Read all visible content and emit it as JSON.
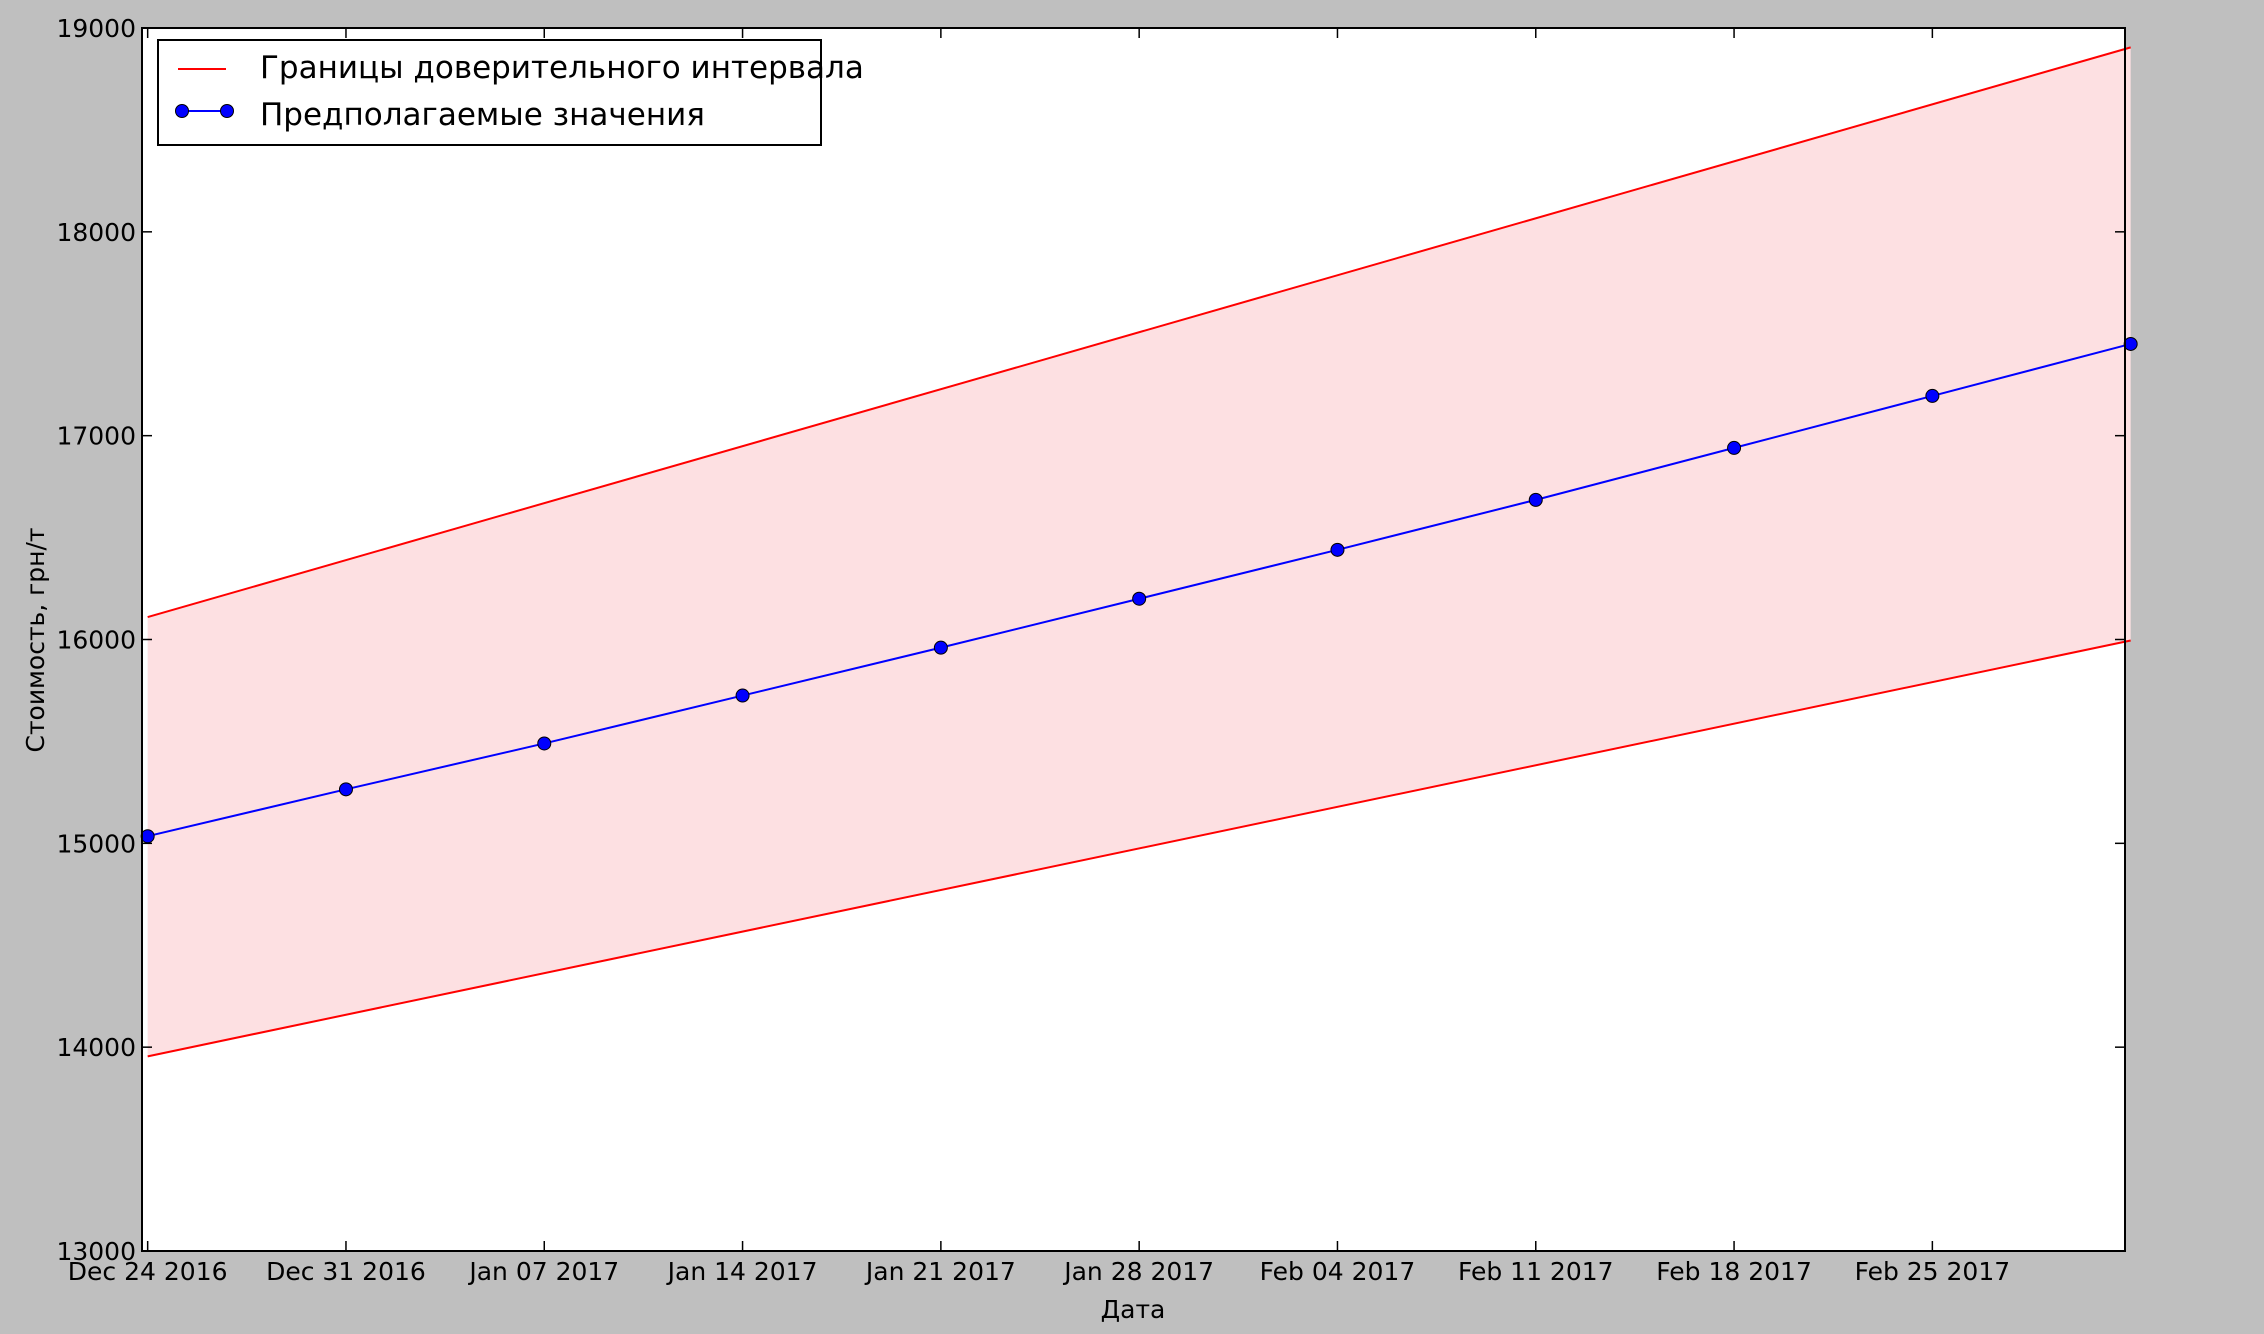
{
  "chart_data": {
    "type": "line",
    "title": "",
    "xlabel": "Дата",
    "ylabel": "Стоимость, грн/т",
    "ylim": [
      13000,
      19000
    ],
    "yticks": [
      "13000",
      "14000",
      "15000",
      "16000",
      "17000",
      "18000",
      "19000"
    ],
    "x_ticks": [
      "Dec 24 2016",
      "Dec 31 2016",
      "Jan 07 2017",
      "Jan 14 2017",
      "Jan 21 2017",
      "Jan 28 2017",
      "Feb 04 2017",
      "Feb 11 2017",
      "Feb 18 2017",
      "Feb 25 2017"
    ],
    "x_range_days": [
      -0.2,
      69.8
    ],
    "x_origin_date": "Dec 24 2016",
    "x_days": [
      0,
      7,
      14,
      21,
      28,
      35,
      42,
      49,
      56,
      63,
      70
    ],
    "series": [
      {
        "name": "Предполагаемые значения",
        "color": "#0000ff",
        "marker": "circle",
        "values": [
          15035,
          15265,
          15490,
          15725,
          15960,
          16200,
          16440,
          16685,
          16940,
          17195,
          17450
        ]
      }
    ],
    "confidence_band": {
      "name": "Границы доверительного интервала",
      "color": "#ff0000",
      "fill": "#fde0e2",
      "upper": {
        "x_days": [
          0,
          70
        ],
        "values": [
          16110,
          18905
        ]
      },
      "lower": {
        "x_days": [
          0,
          70
        ],
        "values": [
          13955,
          15995
        ]
      }
    },
    "legend": {
      "position": "top-left",
      "entries": [
        "Границы доверительного интервала",
        "Предполагаемые значения"
      ]
    },
    "grid": false
  }
}
